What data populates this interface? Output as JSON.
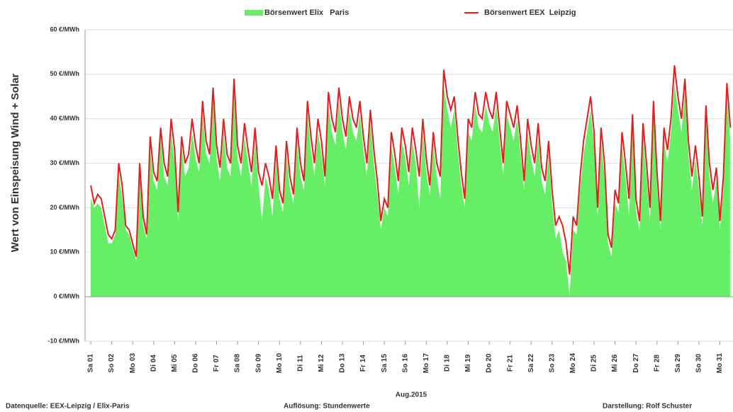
{
  "chart_data": {
    "type": "area-line",
    "y_label": "Wert von Einspeisung Wind + Solar",
    "x_label": "Aug.2015",
    "footnotes": [
      "Datenquelle: EEX-Leipzig / Elix-Paris",
      "Auflösung: Stundenwerte",
      "Darstellung: Rolf Schuster"
    ],
    "xlim": [
      -6.5,
      735
    ],
    "ylim": [
      -10,
      60
    ],
    "grid": true,
    "legend": "top",
    "yticks": [
      {
        "value": -10,
        "label": "-10 €/MWh"
      },
      {
        "value": 0,
        "label": "0 €/MWh"
      },
      {
        "value": 10,
        "label": "10 €/MWh"
      },
      {
        "value": 20,
        "label": "20 €/MWh"
      },
      {
        "value": 30,
        "label": "30 €/MWh"
      },
      {
        "value": 40,
        "label": "40 €/MWh"
      },
      {
        "value": 50,
        "label": "50 €/MWh"
      },
      {
        "value": 60,
        "label": "60 €/MWh"
      }
    ],
    "xticks": [
      {
        "value": 0,
        "label": "Sa 01"
      },
      {
        "value": 24,
        "label": "So 02"
      },
      {
        "value": 48,
        "label": "Mo 03"
      },
      {
        "value": 72,
        "label": "Di 04"
      },
      {
        "value": 96,
        "label": "Mi 05"
      },
      {
        "value": 120,
        "label": "Do 06"
      },
      {
        "value": 144,
        "label": "Fr 07"
      },
      {
        "value": 168,
        "label": "Sa 08"
      },
      {
        "value": 192,
        "label": "So 09"
      },
      {
        "value": 216,
        "label": "Mo 10"
      },
      {
        "value": 240,
        "label": "Di 11"
      },
      {
        "value": 264,
        "label": "Mi 12"
      },
      {
        "value": 288,
        "label": "Do 13"
      },
      {
        "value": 312,
        "label": "Fr 14"
      },
      {
        "value": 336,
        "label": "Sa 15"
      },
      {
        "value": 360,
        "label": "So 16"
      },
      {
        "value": 384,
        "label": "Mo 17"
      },
      {
        "value": 408,
        "label": "Di 18"
      },
      {
        "value": 432,
        "label": "Mi 19"
      },
      {
        "value": 456,
        "label": "Do 20"
      },
      {
        "value": 480,
        "label": "Fr 21"
      },
      {
        "value": 504,
        "label": "Sa 22"
      },
      {
        "value": 528,
        "label": "So 23"
      },
      {
        "value": 552,
        "label": "Mo 24"
      },
      {
        "value": 576,
        "label": "Di 25"
      },
      {
        "value": 600,
        "label": "Mi 26"
      },
      {
        "value": 624,
        "label": "Do 27"
      },
      {
        "value": 648,
        "label": "Fr 28"
      },
      {
        "value": 672,
        "label": "Sa 29"
      },
      {
        "value": 696,
        "label": "So 30"
      },
      {
        "value": 720,
        "label": "Mo 31"
      }
    ],
    "x": [
      0,
      4,
      8,
      12,
      16,
      20,
      24,
      28,
      32,
      36,
      40,
      44,
      48,
      52,
      56,
      60,
      64,
      68,
      72,
      76,
      80,
      84,
      88,
      92,
      96,
      100,
      104,
      108,
      112,
      116,
      120,
      124,
      128,
      132,
      136,
      140,
      144,
      148,
      152,
      156,
      160,
      164,
      168,
      172,
      176,
      180,
      184,
      188,
      192,
      196,
      200,
      204,
      208,
      212,
      216,
      220,
      224,
      228,
      232,
      236,
      240,
      244,
      248,
      252,
      256,
      260,
      264,
      268,
      272,
      276,
      280,
      284,
      288,
      292,
      296,
      300,
      304,
      308,
      312,
      316,
      320,
      324,
      328,
      332,
      336,
      340,
      344,
      348,
      352,
      356,
      360,
      364,
      368,
      372,
      376,
      380,
      384,
      388,
      392,
      396,
      400,
      404,
      408,
      412,
      416,
      420,
      424,
      428,
      432,
      436,
      440,
      444,
      448,
      452,
      456,
      460,
      464,
      468,
      472,
      476,
      480,
      484,
      488,
      492,
      496,
      500,
      504,
      508,
      512,
      516,
      520,
      524,
      528,
      532,
      536,
      540,
      544,
      548,
      552,
      556,
      560,
      564,
      568,
      572,
      576,
      580,
      584,
      588,
      592,
      596,
      600,
      604,
      608,
      612,
      616,
      620,
      624,
      628,
      632,
      636,
      640,
      644,
      648,
      652,
      656,
      660,
      664,
      668,
      672,
      676,
      680,
      684,
      688,
      692,
      696,
      700,
      704,
      708,
      712,
      716,
      720,
      724,
      728,
      732
    ],
    "series": [
      {
        "name": "Börsenwert Elix   Paris",
        "kind": "area",
        "color": "#66ee66",
        "values": [
          22,
          20,
          21,
          20,
          16,
          12,
          12,
          14,
          28,
          22,
          15,
          14,
          11,
          8,
          28,
          16,
          13,
          33,
          26,
          24,
          36,
          27,
          25,
          37,
          30,
          17,
          34,
          27,
          29,
          37,
          31,
          28,
          41,
          32,
          30,
          44,
          31,
          26,
          37,
          29,
          27,
          45,
          31,
          27,
          36,
          30,
          25,
          35,
          25,
          17,
          27,
          24,
          18,
          31,
          22,
          19,
          32,
          24,
          21,
          35,
          27,
          24,
          41,
          33,
          27,
          37,
          32,
          25,
          43,
          37,
          34,
          44,
          37,
          33,
          42,
          37,
          35,
          41,
          33,
          27,
          39,
          30,
          23,
          15,
          20,
          18,
          34,
          29,
          23,
          35,
          31,
          25,
          35,
          30,
          20,
          37,
          28,
          23,
          34,
          27,
          22,
          47,
          42,
          38,
          42,
          33,
          25,
          20,
          37,
          35,
          43,
          38,
          37,
          43,
          39,
          37,
          43,
          35,
          27,
          41,
          38,
          35,
          40,
          32,
          24,
          37,
          31,
          27,
          36,
          26,
          23,
          32,
          21,
          13,
          15,
          10,
          8,
          0,
          15,
          14,
          24,
          32,
          37,
          42,
          34,
          18,
          35,
          27,
          12,
          9,
          21,
          19,
          34,
          27,
          18,
          38,
          19,
          15,
          36,
          27,
          17,
          41,
          25,
          15,
          35,
          30,
          37,
          48,
          42,
          37,
          46,
          32,
          24,
          31,
          24,
          16,
          40,
          27,
          21,
          26,
          15,
          24,
          45,
          35
        ]
      },
      {
        "name": "Börsenwert EEX  Leipzig",
        "kind": "line",
        "color": "#e02020",
        "values": [
          25,
          21,
          23,
          22,
          18,
          14,
          13,
          15,
          30,
          25,
          16,
          15,
          12,
          9,
          30,
          18,
          14,
          36,
          28,
          26,
          38,
          30,
          27,
          40,
          33,
          19,
          36,
          30,
          32,
          40,
          34,
          30,
          44,
          35,
          32,
          47,
          34,
          29,
          40,
          32,
          30,
          49,
          34,
          30,
          39,
          33,
          28,
          38,
          28,
          25,
          30,
          27,
          22,
          34,
          24,
          21,
          35,
          27,
          23,
          38,
          30,
          26,
          44,
          36,
          30,
          40,
          35,
          27,
          46,
          40,
          37,
          47,
          40,
          36,
          45,
          40,
          38,
          44,
          36,
          30,
          42,
          33,
          26,
          17,
          22,
          20,
          37,
          32,
          26,
          38,
          34,
          28,
          38,
          33,
          27,
          40,
          31,
          25,
          37,
          30,
          27,
          51,
          45,
          42,
          45,
          36,
          28,
          22,
          40,
          38,
          46,
          41,
          40,
          46,
          42,
          40,
          46,
          38,
          30,
          44,
          41,
          38,
          43,
          35,
          26,
          40,
          34,
          30,
          39,
          29,
          26,
          35,
          24,
          16,
          18,
          16,
          12,
          5,
          18,
          16,
          27,
          35,
          40,
          45,
          37,
          20,
          38,
          30,
          14,
          11,
          24,
          21,
          37,
          30,
          22,
          41,
          22,
          17,
          39,
          30,
          20,
          44,
          28,
          17,
          38,
          33,
          40,
          52,
          45,
          40,
          49,
          35,
          27,
          34,
          27,
          18,
          43,
          30,
          24,
          29,
          17,
          27,
          48,
          38
        ]
      }
    ]
  }
}
